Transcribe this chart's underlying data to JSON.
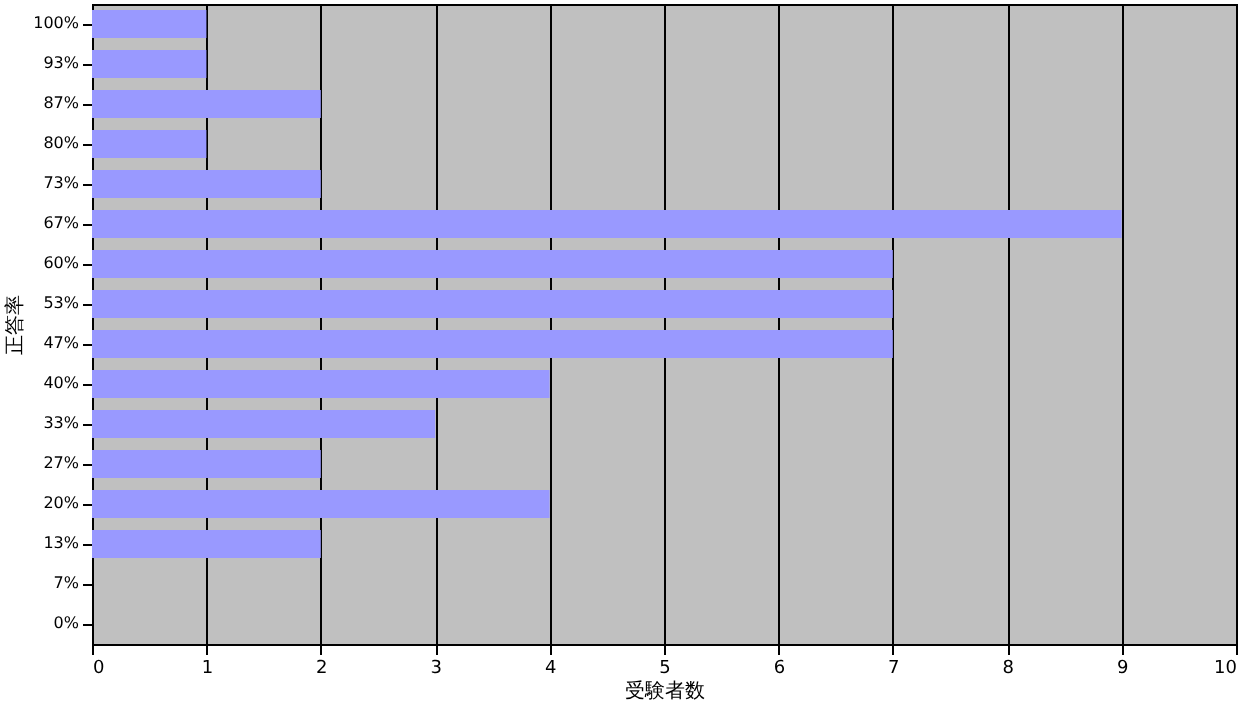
{
  "chart_data": {
    "type": "bar",
    "orientation": "horizontal",
    "xlabel": "受験者数",
    "ylabel": "正答率",
    "categories": [
      "100%",
      "93%",
      "87%",
      "80%",
      "73%",
      "67%",
      "60%",
      "53%",
      "47%",
      "40%",
      "33%",
      "27%",
      "20%",
      "13%",
      "7%",
      "0%"
    ],
    "values": [
      1,
      1,
      2,
      1,
      2,
      9,
      7,
      7,
      7,
      4,
      3,
      2,
      4,
      2,
      0,
      0
    ],
    "color": "#9999ff",
    "xlim": [
      0,
      10
    ],
    "xticks": [
      0,
      1,
      2,
      3,
      4,
      5,
      6,
      7,
      8,
      9,
      10
    ],
    "grid": "x"
  }
}
